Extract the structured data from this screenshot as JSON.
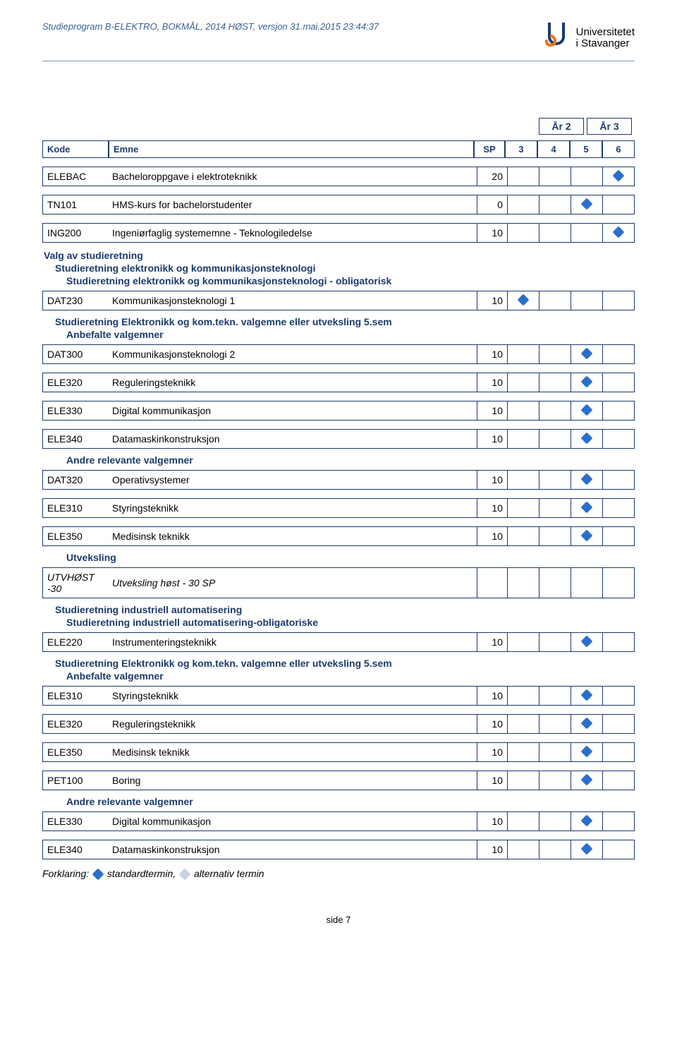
{
  "header": {
    "program_text": "Studieprogram B-ELEKTRO, BOKMÅL, 2014 HØST, versjon 31.mai.2015 23:44:37",
    "logo_text1": "Universitetet",
    "logo_text2": "i Stavanger"
  },
  "years": {
    "y2": "År 2",
    "y3": "År 3"
  },
  "head": {
    "kode": "Kode",
    "emne": "Emne",
    "sp": "SP",
    "c3": "3",
    "c4": "4",
    "c5": "5",
    "c6": "6"
  },
  "sections": {
    "valg": "Valg av studieretning",
    "sek1": "Studieretning elektronikk og kommunikasjonsteknologi",
    "sek1_ob": "Studieretning elektronikk og kommunikasjonsteknologi - obligatorisk",
    "sek1_val": "Studieretning Elektronikk og kom.tekn. valgemne eller utveksling 5.sem",
    "anbefalte": "Anbefalte valgemner",
    "andre": "Andre relevante valgemner",
    "utveksling": "Utveksling",
    "ind": "Studieretning industriell automatisering",
    "ind_ob": "Studieretning industriell automatisering-obligatoriske",
    "sek2_val": "Studieretning Elektronikk og kom.tekn. valgemne eller utveksling 5.sem"
  },
  "rows": {
    "elebac": {
      "code": "ELEBAC",
      "name": "Bacheloroppgave i elektroteknikk",
      "sp": "20",
      "mark": 6
    },
    "tn101": {
      "code": "TN101",
      "name": "HMS-kurs for bachelorstudenter",
      "sp": "0",
      "mark": 5
    },
    "ing200": {
      "code": "ING200",
      "name": "Ingeniørfaglig systememne - Teknologiledelse",
      "sp": "10",
      "mark": 6
    },
    "dat230": {
      "code": "DAT230",
      "name": "Kommunikasjonsteknologi 1",
      "sp": "10",
      "mark": 3
    },
    "dat300": {
      "code": "DAT300",
      "name": "Kommunikasjonsteknologi 2",
      "sp": "10",
      "mark": 5
    },
    "ele320": {
      "code": "ELE320",
      "name": "Reguleringsteknikk",
      "sp": "10",
      "mark": 5
    },
    "ele330": {
      "code": "ELE330",
      "name": "Digital kommunikasjon",
      "sp": "10",
      "mark": 5
    },
    "ele340": {
      "code": "ELE340",
      "name": "Datamaskinkonstruksjon",
      "sp": "10",
      "mark": 5
    },
    "dat320": {
      "code": "DAT320",
      "name": "Operativsystemer",
      "sp": "10",
      "mark": 5
    },
    "ele310": {
      "code": "ELE310",
      "name": "Styringsteknikk",
      "sp": "10",
      "mark": 5
    },
    "ele350": {
      "code": "ELE350",
      "name": "Medisinsk teknikk",
      "sp": "10",
      "mark": 5
    },
    "utv": {
      "code": "UTVHØST -30",
      "name": "Utveksling høst - 30 SP",
      "sp": "",
      "mark": 0,
      "italic": true
    },
    "ele220": {
      "code": "ELE220",
      "name": "Instrumenteringsteknikk",
      "sp": "10",
      "mark": 5
    },
    "ele310b": {
      "code": "ELE310",
      "name": "Styringsteknikk",
      "sp": "10",
      "mark": 5
    },
    "ele320b": {
      "code": "ELE320",
      "name": "Reguleringsteknikk",
      "sp": "10",
      "mark": 5
    },
    "ele350b": {
      "code": "ELE350",
      "name": "Medisinsk teknikk",
      "sp": "10",
      "mark": 5
    },
    "pet100": {
      "code": "PET100",
      "name": "Boring",
      "sp": "10",
      "mark": 5
    },
    "ele330b": {
      "code": "ELE330",
      "name": "Digital kommunikasjon",
      "sp": "10",
      "mark": 5
    },
    "ele340b": {
      "code": "ELE340",
      "name": "Datamaskinkonstruksjon",
      "sp": "10",
      "mark": 5
    }
  },
  "legend": {
    "prefix": "Forklaring:",
    "std": "standardtermin,",
    "alt": "alternativ termin"
  },
  "footer": "side 7"
}
